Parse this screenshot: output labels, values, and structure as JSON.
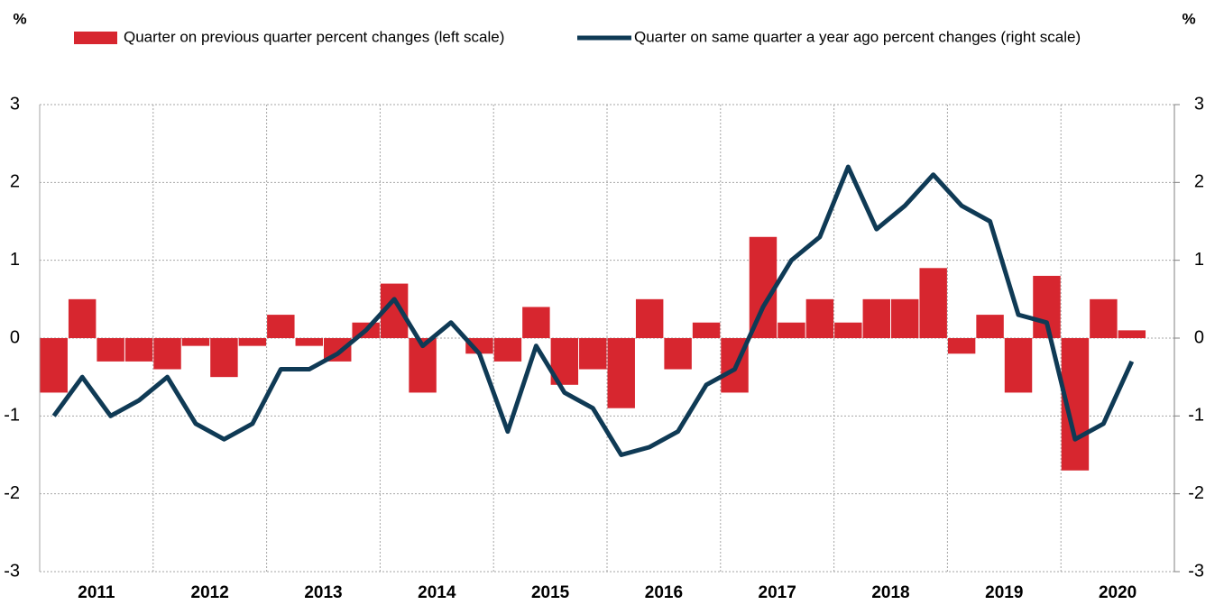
{
  "chart_data": {
    "type": "bar_line",
    "y_unit": "%",
    "y2_unit": "%",
    "categories": [
      "2011",
      null,
      null,
      null,
      "2012",
      null,
      null,
      null,
      "2013",
      null,
      null,
      null,
      "2014",
      null,
      null,
      null,
      "2015",
      null,
      null,
      null,
      "2016",
      null,
      null,
      null,
      "2017",
      null,
      null,
      null,
      "2018",
      null,
      null,
      null,
      "2019",
      null,
      null,
      null,
      "2020",
      null,
      null
    ],
    "series": [
      {
        "name": "Quarter on previous quarter percent changes (left scale)",
        "type": "bar",
        "axis": "y",
        "color": "#d7262f",
        "values": [
          -0.7,
          0.5,
          -0.3,
          -0.3,
          -0.4,
          -0.1,
          -0.5,
          -0.1,
          0.3,
          -0.1,
          -0.3,
          0.2,
          0.7,
          -0.7,
          0.0,
          -0.2,
          -0.3,
          0.4,
          -0.6,
          -0.4,
          -0.9,
          0.5,
          -0.4,
          0.2,
          -0.7,
          1.3,
          0.2,
          0.5,
          0.2,
          0.5,
          0.5,
          0.9,
          -0.2,
          0.3,
          -0.7,
          0.8,
          -1.7,
          0.5,
          0.1
        ]
      },
      {
        "name": "Quarter on same quarter a year ago percent changes (right scale)",
        "type": "line",
        "axis": "y2",
        "color": "#0f3a55",
        "values": [
          -1.0,
          -0.5,
          -1.0,
          -0.8,
          -0.5,
          -1.1,
          -1.3,
          -1.1,
          -0.4,
          -0.4,
          -0.2,
          0.1,
          0.5,
          -0.1,
          0.2,
          -0.2,
          -1.2,
          -0.1,
          -0.7,
          -0.9,
          -1.5,
          -1.4,
          -1.2,
          -0.6,
          -0.4,
          0.4,
          1.0,
          1.3,
          2.2,
          1.4,
          1.7,
          2.1,
          1.7,
          1.5,
          0.3,
          0.2,
          -1.3,
          -1.1,
          -0.3
        ]
      }
    ],
    "ylim": [
      -3,
      3
    ],
    "yticks": [
      -3,
      -2,
      -1,
      0,
      1,
      2,
      3
    ],
    "y2lim": [
      -3,
      3
    ],
    "y2ticks": [
      -3,
      -2,
      -1,
      0,
      1,
      2,
      3
    ],
    "grid": true
  }
}
